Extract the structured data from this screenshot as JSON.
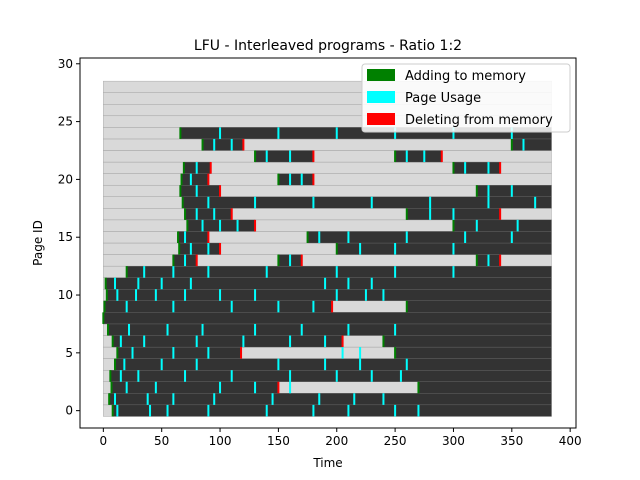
{
  "chart_data": {
    "type": "heatmap",
    "title": "LFU - Interleaved programs - Ratio 1:2",
    "xlabel": "Time",
    "ylabel": "Page ID",
    "xlim": [
      -20,
      405
    ],
    "ylim": [
      -1.5,
      30.5
    ],
    "xticks": [
      0,
      50,
      100,
      150,
      200,
      250,
      300,
      350,
      400
    ],
    "yticks": [
      0,
      5,
      10,
      15,
      20,
      25,
      30
    ],
    "time_range": [
      0,
      384
    ],
    "page_count": 29,
    "legend": {
      "placement": "top-right",
      "entries": [
        {
          "label": "Adding to memory",
          "color": "#008000"
        },
        {
          "label": "Page Usage",
          "color": "#00ffff"
        },
        {
          "label": "Deleting from memory",
          "color": "#ff0000"
        }
      ]
    },
    "colors": {
      "in_memory": "#333333",
      "not_in_memory": "#d9d9d9",
      "grid": "#9a9a9a",
      "add": "#008000",
      "usage": "#00ffff",
      "delete": "#ff0000"
    },
    "series": [
      {
        "page": 0,
        "in_memory": [
          [
            8,
            384
          ]
        ],
        "adds": [
          8
        ],
        "deletes": [],
        "usage": [
          12,
          40,
          55,
          90,
          140,
          180,
          210,
          250,
          270
        ]
      },
      {
        "page": 1,
        "in_memory": [
          [
            5,
            384
          ]
        ],
        "adds": [
          5
        ],
        "deletes": [],
        "usage": [
          10,
          38,
          60,
          95,
          145,
          185,
          215,
          240
        ]
      },
      {
        "page": 2,
        "in_memory": [
          [
            7,
            150
          ],
          [
            270,
            384
          ]
        ],
        "adds": [
          7,
          270
        ],
        "deletes": [
          150
        ],
        "usage": [
          20,
          45,
          100,
          130,
          160
        ]
      },
      {
        "page": 3,
        "in_memory": [
          [
            6,
            384
          ]
        ],
        "adds": [
          6
        ],
        "deletes": [],
        "usage": [
          15,
          30,
          70,
          110,
          160,
          200,
          230,
          255
        ]
      },
      {
        "page": 4,
        "in_memory": [
          [
            10,
            384
          ]
        ],
        "adds": [
          10
        ],
        "deletes": [],
        "usage": [
          18,
          50,
          80,
          150,
          190,
          220,
          260
        ]
      },
      {
        "page": 5,
        "in_memory": [
          [
            12,
            118
          ],
          [
            250,
            384
          ]
        ],
        "adds": [
          12,
          250
        ],
        "deletes": [
          118
        ],
        "usage": [
          25,
          60,
          90,
          205,
          220
        ]
      },
      {
        "page": 6,
        "in_memory": [
          [
            8,
            205
          ],
          [
            240,
            384
          ]
        ],
        "adds": [
          8,
          240
        ],
        "deletes": [
          205
        ],
        "usage": [
          15,
          35,
          80,
          120,
          160,
          190
        ]
      },
      {
        "page": 7,
        "in_memory": [
          [
            4,
            384
          ]
        ],
        "adds": [
          4
        ],
        "deletes": [],
        "usage": [
          22,
          55,
          85,
          130,
          170,
          210,
          250
        ]
      },
      {
        "page": 8,
        "in_memory": [
          [
            0,
            384
          ]
        ],
        "adds": [
          0
        ],
        "deletes": [],
        "usage": []
      },
      {
        "page": 9,
        "in_memory": [
          [
            1,
            196
          ],
          [
            260,
            384
          ]
        ],
        "adds": [
          1,
          260
        ],
        "deletes": [
          196
        ],
        "usage": [
          20,
          60,
          110,
          150,
          180
        ]
      },
      {
        "page": 10,
        "in_memory": [
          [
            3,
            384
          ]
        ],
        "adds": [
          3
        ],
        "deletes": [],
        "usage": [
          12,
          28,
          45,
          70,
          100,
          130,
          200,
          225,
          240
        ]
      },
      {
        "page": 11,
        "in_memory": [
          [
            2,
            384
          ]
        ],
        "adds": [
          2
        ],
        "deletes": [],
        "usage": [
          10,
          30,
          50,
          75,
          190,
          210,
          230
        ]
      },
      {
        "page": 12,
        "in_memory": [
          [
            20,
            384
          ]
        ],
        "adds": [
          20
        ],
        "deletes": [],
        "usage": [
          35,
          60,
          90,
          140,
          200,
          250,
          300
        ]
      },
      {
        "page": 13,
        "in_memory": [
          [
            60,
            80
          ],
          [
            150,
            170
          ],
          [
            320,
            340
          ]
        ],
        "adds": [
          60,
          150,
          320
        ],
        "deletes": [
          80,
          170,
          340
        ],
        "usage": [
          70,
          160,
          330
        ]
      },
      {
        "page": 14,
        "in_memory": [
          [
            65,
            100
          ],
          [
            200,
            384
          ]
        ],
        "adds": [
          65,
          200
        ],
        "deletes": [
          100
        ],
        "usage": [
          75,
          90,
          220,
          250,
          300
        ]
      },
      {
        "page": 15,
        "in_memory": [
          [
            64,
            90
          ],
          [
            175,
            384
          ]
        ],
        "adds": [
          64,
          175
        ],
        "deletes": [
          90
        ],
        "usage": [
          70,
          185,
          210,
          260,
          310,
          350
        ]
      },
      {
        "page": 16,
        "in_memory": [
          [
            72,
            130
          ],
          [
            300,
            384
          ]
        ],
        "adds": [
          72,
          300
        ],
        "deletes": [
          130
        ],
        "usage": [
          85,
          100,
          115,
          320,
          355
        ]
      },
      {
        "page": 17,
        "in_memory": [
          [
            70,
            110
          ],
          [
            260,
            340
          ]
        ],
        "adds": [
          70,
          260
        ],
        "deletes": [
          110,
          340
        ],
        "usage": [
          80,
          95,
          280,
          300
        ]
      },
      {
        "page": 18,
        "in_memory": [
          [
            68,
            384
          ]
        ],
        "adds": [
          68
        ],
        "deletes": [],
        "usage": [
          90,
          130,
          180,
          230,
          280,
          330,
          370
        ]
      },
      {
        "page": 19,
        "in_memory": [
          [
            66,
            100
          ],
          [
            320,
            384
          ]
        ],
        "adds": [
          66,
          320
        ],
        "deletes": [
          100
        ],
        "usage": [
          80,
          330,
          350
        ]
      },
      {
        "page": 20,
        "in_memory": [
          [
            67,
            90
          ],
          [
            150,
            180
          ]
        ],
        "adds": [
          67,
          150
        ],
        "deletes": [
          90,
          180
        ],
        "usage": [
          75,
          160,
          170
        ]
      },
      {
        "page": 21,
        "in_memory": [
          [
            69,
            92
          ],
          [
            300,
            340
          ]
        ],
        "adds": [
          69,
          300
        ],
        "deletes": [
          92,
          340
        ],
        "usage": [
          80,
          310,
          330
        ]
      },
      {
        "page": 22,
        "in_memory": [
          [
            130,
            180
          ],
          [
            250,
            290
          ]
        ],
        "adds": [
          130,
          250
        ],
        "deletes": [
          180,
          290
        ],
        "usage": [
          140,
          160,
          260,
          275
        ]
      },
      {
        "page": 23,
        "in_memory": [
          [
            85,
            120
          ],
          [
            350,
            384
          ]
        ],
        "adds": [
          85,
          350
        ],
        "deletes": [
          120
        ],
        "usage": [
          95,
          110,
          360
        ]
      },
      {
        "page": 24,
        "in_memory": [
          [
            66,
            384
          ]
        ],
        "adds": [
          66
        ],
        "deletes": [],
        "usage": [
          100,
          150,
          200,
          250,
          300,
          350
        ]
      },
      {
        "page": 25,
        "in_memory": [],
        "adds": [],
        "deletes": [],
        "usage": []
      },
      {
        "page": 26,
        "in_memory": [],
        "adds": [],
        "deletes": [],
        "usage": []
      },
      {
        "page": 27,
        "in_memory": [],
        "adds": [],
        "deletes": [],
        "usage": []
      },
      {
        "page": 28,
        "in_memory": [],
        "adds": [],
        "deletes": [],
        "usage": []
      }
    ]
  }
}
